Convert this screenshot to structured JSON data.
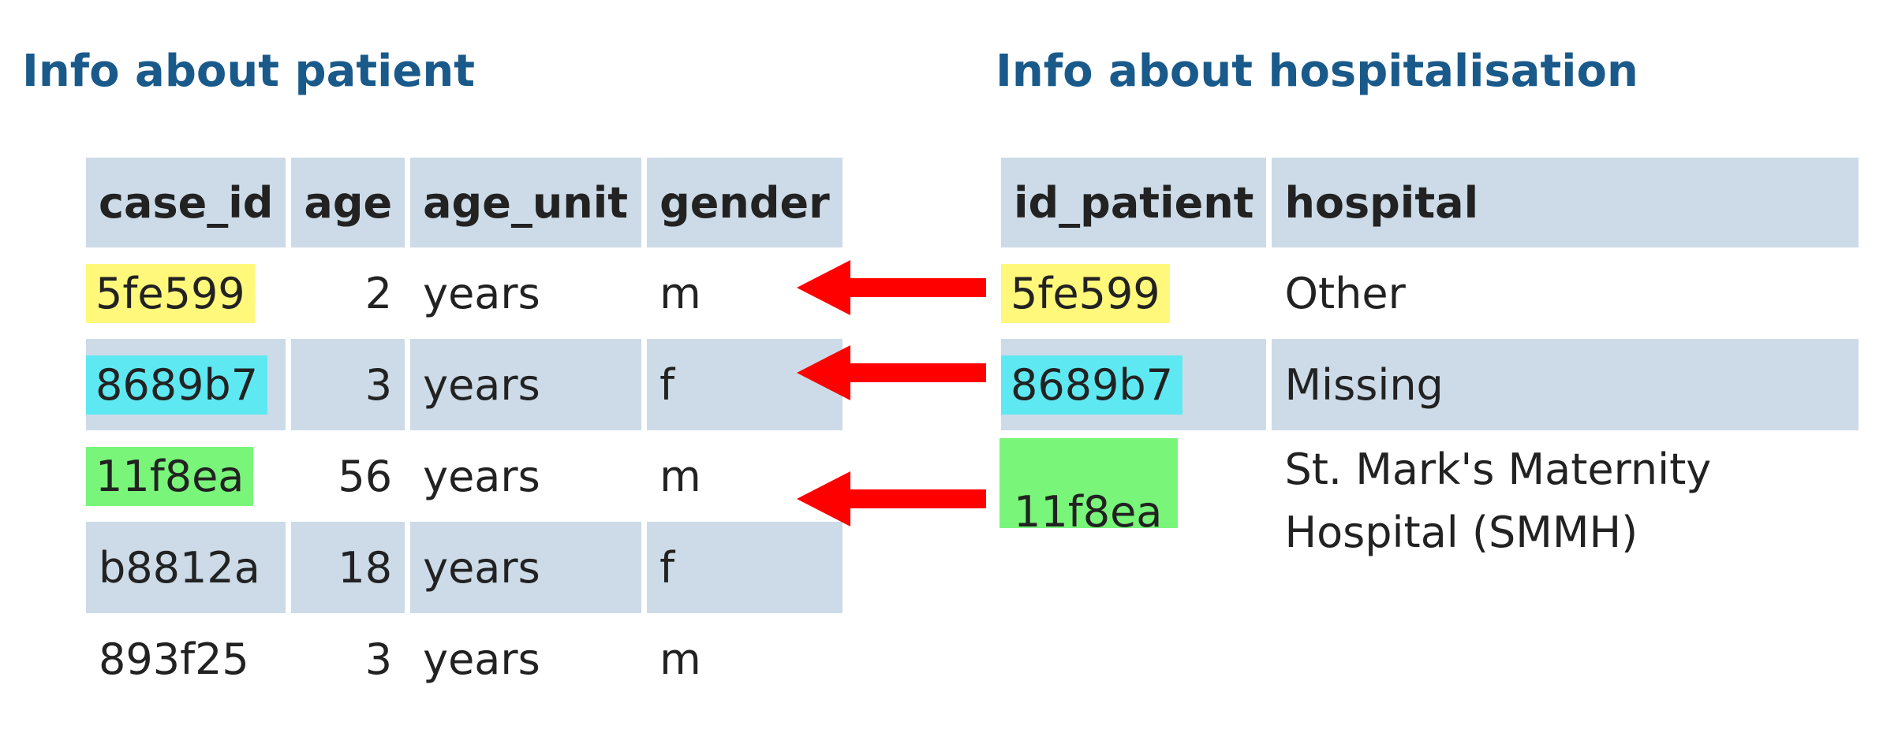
{
  "left_table": {
    "title": "Info about patient",
    "columns": [
      "case_id",
      "age",
      "age_unit",
      "gender"
    ],
    "rows": [
      {
        "case_id": "5fe599",
        "age": "2",
        "age_unit": "years",
        "gender": "m",
        "highlight": "#fff87a"
      },
      {
        "case_id": "8689b7",
        "age": "3",
        "age_unit": "years",
        "gender": "f",
        "highlight": "#5ee9f2"
      },
      {
        "case_id": "11f8ea",
        "age": "56",
        "age_unit": "years",
        "gender": "m",
        "highlight": "#79f57a"
      },
      {
        "case_id": "b8812a",
        "age": "18",
        "age_unit": "years",
        "gender": "f",
        "highlight": ""
      },
      {
        "case_id": "893f25",
        "age": "3",
        "age_unit": "years",
        "gender": "m",
        "highlight": ""
      }
    ]
  },
  "right_table": {
    "title": "Info about hospitalisation",
    "columns": [
      "id_patient",
      "hospital"
    ],
    "rows": [
      {
        "id_patient": "5fe599",
        "hospital": "Other",
        "highlight": "#fff87a"
      },
      {
        "id_patient": "8689b7",
        "hospital": "Missing",
        "highlight": "#5ee9f2"
      },
      {
        "id_patient": "11f8ea",
        "hospital": "St. Mark's Maternity Hospital (SMMH)",
        "highlight": "#79f57a"
      }
    ]
  },
  "arrows": {
    "color": "#ff0000",
    "links": [
      "5fe599",
      "8689b7",
      "11f8ea"
    ]
  },
  "colors": {
    "heading": "#1a5a8a",
    "row_shade": "#ccdbe7",
    "highlight_yellow": "#fff87a",
    "highlight_cyan": "#5ee9f2",
    "highlight_green": "#79f57a"
  }
}
